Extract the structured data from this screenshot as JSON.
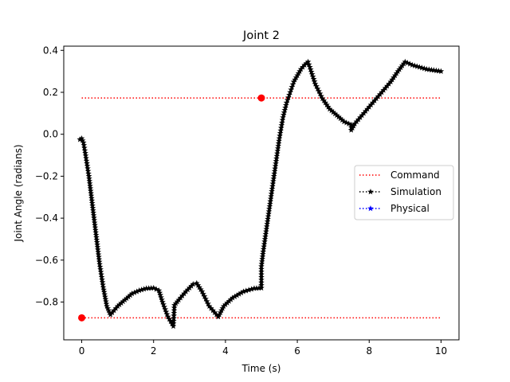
{
  "chart_data": {
    "type": "line",
    "title": "Joint 2",
    "xlabel": "Time (s)",
    "ylabel": "Joint Angle (radians)",
    "xlim": [
      -0.5,
      10.5
    ],
    "ylim": [
      -0.98,
      0.42
    ],
    "xticks": [
      0,
      2,
      4,
      6,
      8,
      10
    ],
    "xtick_labels": [
      "0",
      "2",
      "4",
      "6",
      "8",
      "10"
    ],
    "yticks": [
      -0.8,
      -0.6,
      -0.4,
      -0.2,
      0.0,
      0.2,
      0.4
    ],
    "ytick_labels": [
      "−0.8",
      "−0.6",
      "−0.4",
      "−0.2",
      "0.0",
      "0.2",
      "0.4"
    ],
    "grid": false,
    "legend_position": "center-right",
    "series": [
      {
        "name": "Command",
        "color": "#ff0000",
        "linestyle": "dotted",
        "marker": "none",
        "lines": [
          {
            "x": [
              0,
              10
            ],
            "y": [
              -0.875,
              -0.875
            ]
          },
          {
            "x": [
              0,
              10
            ],
            "y": [
              0.173,
              0.173
            ]
          }
        ],
        "points": [
          {
            "x": 0,
            "y": -0.875
          },
          {
            "x": 5,
            "y": 0.173
          }
        ]
      },
      {
        "name": "Simulation",
        "color": "#000000",
        "linestyle": "dotted",
        "marker": "star",
        "keypoints": [
          [
            -0.05,
            -0.025
          ],
          [
            0.0,
            -0.02
          ],
          [
            0.05,
            -0.04
          ],
          [
            0.1,
            -0.09
          ],
          [
            0.2,
            -0.2
          ],
          [
            0.3,
            -0.34
          ],
          [
            0.4,
            -0.48
          ],
          [
            0.5,
            -0.62
          ],
          [
            0.6,
            -0.73
          ],
          [
            0.7,
            -0.82
          ],
          [
            0.8,
            -0.86
          ],
          [
            0.9,
            -0.84
          ],
          [
            1.0,
            -0.82
          ],
          [
            1.2,
            -0.79
          ],
          [
            1.4,
            -0.76
          ],
          [
            1.6,
            -0.745
          ],
          [
            1.8,
            -0.735
          ],
          [
            2.0,
            -0.733
          ],
          [
            2.15,
            -0.745
          ],
          [
            2.25,
            -0.8
          ],
          [
            2.4,
            -0.87
          ],
          [
            2.55,
            -0.915
          ],
          [
            2.58,
            -0.815
          ],
          [
            2.7,
            -0.79
          ],
          [
            2.9,
            -0.75
          ],
          [
            3.1,
            -0.715
          ],
          [
            3.2,
            -0.71
          ],
          [
            3.35,
            -0.75
          ],
          [
            3.55,
            -0.82
          ],
          [
            3.8,
            -0.87
          ],
          [
            3.95,
            -0.82
          ],
          [
            4.2,
            -0.78
          ],
          [
            4.5,
            -0.75
          ],
          [
            4.8,
            -0.735
          ],
          [
            5.0,
            -0.733
          ],
          [
            5.0,
            -0.63
          ],
          [
            5.05,
            -0.56
          ],
          [
            5.1,
            -0.5
          ],
          [
            5.2,
            -0.38
          ],
          [
            5.3,
            -0.26
          ],
          [
            5.4,
            -0.14
          ],
          [
            5.5,
            -0.02
          ],
          [
            5.6,
            0.08
          ],
          [
            5.7,
            0.15
          ],
          [
            5.8,
            0.2
          ],
          [
            5.9,
            0.25
          ],
          [
            6.0,
            0.28
          ],
          [
            6.1,
            0.31
          ],
          [
            6.2,
            0.33
          ],
          [
            6.3,
            0.345
          ],
          [
            6.35,
            0.32
          ],
          [
            6.5,
            0.24
          ],
          [
            6.7,
            0.17
          ],
          [
            6.9,
            0.12
          ],
          [
            7.1,
            0.09
          ],
          [
            7.3,
            0.06
          ],
          [
            7.5,
            0.045
          ],
          [
            7.5,
            0.02
          ],
          [
            7.6,
            0.05
          ],
          [
            7.8,
            0.09
          ],
          [
            8.0,
            0.13
          ],
          [
            8.2,
            0.17
          ],
          [
            8.4,
            0.21
          ],
          [
            8.6,
            0.25
          ],
          [
            8.8,
            0.3
          ],
          [
            9.0,
            0.345
          ],
          [
            9.2,
            0.33
          ],
          [
            9.4,
            0.32
          ],
          [
            9.6,
            0.31
          ],
          [
            9.8,
            0.305
          ],
          [
            10.0,
            0.3
          ]
        ]
      },
      {
        "name": "Physical",
        "color": "#0000ff",
        "linestyle": "dotted",
        "marker": "star",
        "keypoints": []
      }
    ]
  }
}
